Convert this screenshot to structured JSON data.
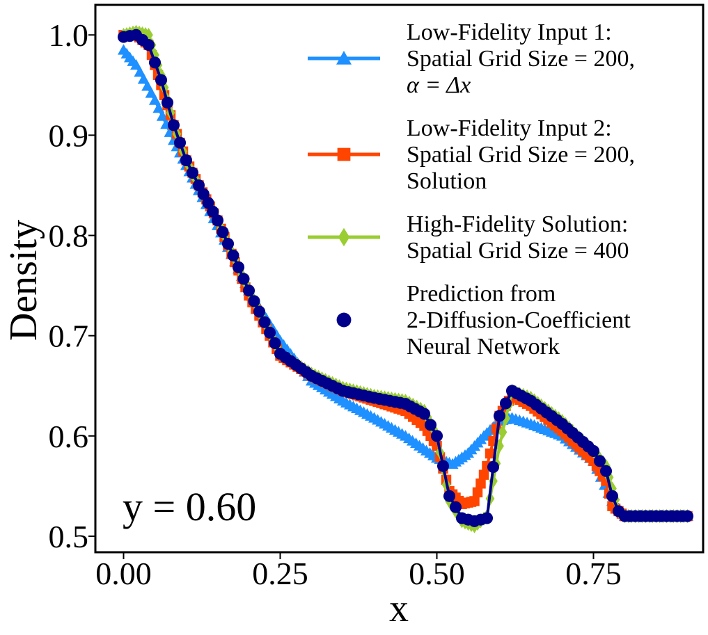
{
  "chart_data": {
    "type": "line",
    "xlabel": "x",
    "ylabel": "Density",
    "xlim": [
      -0.045,
      0.925
    ],
    "ylim": [
      0.484,
      1.03
    ],
    "xticks": [
      0.0,
      0.25,
      0.5,
      0.75
    ],
    "xtick_labels": [
      "0.00",
      "0.25",
      "0.50",
      "0.75"
    ],
    "yticks": [
      0.5,
      0.6,
      0.7,
      0.8,
      0.9,
      1.0
    ],
    "ytick_labels": [
      "0.5",
      "0.6",
      "0.7",
      "0.8",
      "0.9",
      "1.0"
    ],
    "annotation": "y = 0.60",
    "grid": false,
    "legend_position": "top-right",
    "series": [
      {
        "name_lines": [
          "Low-Fidelity Input 1:",
          "Spatial Grid Size = 200,",
          "α = Δx"
        ],
        "color": "#1E90FF",
        "marker": "triangle",
        "x": [
          0.0,
          0.02,
          0.05,
          0.08,
          0.1,
          0.12,
          0.15,
          0.2,
          0.25,
          0.3,
          0.35,
          0.4,
          0.45,
          0.5,
          0.525,
          0.55,
          0.575,
          0.6,
          0.62,
          0.65,
          0.7,
          0.75,
          0.78,
          0.8,
          0.85,
          0.9
        ],
        "y": [
          0.985,
          0.97,
          0.935,
          0.895,
          0.87,
          0.845,
          0.81,
          0.745,
          0.695,
          0.655,
          0.635,
          0.618,
          0.6,
          0.578,
          0.572,
          0.583,
          0.6,
          0.615,
          0.618,
          0.612,
          0.6,
          0.575,
          0.535,
          0.52,
          0.52,
          0.52
        ]
      },
      {
        "name_lines": [
          "Low-Fidelity Input 2:",
          "Spatial Grid Size = 200,",
          "Solution"
        ],
        "color": "#FF4500",
        "marker": "square",
        "x": [
          0.0,
          0.02,
          0.04,
          0.06,
          0.08,
          0.1,
          0.12,
          0.15,
          0.2,
          0.25,
          0.3,
          0.35,
          0.4,
          0.45,
          0.48,
          0.5,
          0.52,
          0.54,
          0.56,
          0.58,
          0.6,
          0.62,
          0.65,
          0.7,
          0.75,
          0.77,
          0.78,
          0.8,
          0.85,
          0.9
        ],
        "y": [
          1.0,
          1.0,
          0.99,
          0.95,
          0.91,
          0.875,
          0.85,
          0.815,
          0.74,
          0.68,
          0.66,
          0.645,
          0.635,
          0.625,
          0.61,
          0.59,
          0.545,
          0.532,
          0.535,
          0.57,
          0.62,
          0.64,
          0.63,
          0.605,
          0.575,
          0.555,
          0.53,
          0.52,
          0.52,
          0.52
        ]
      },
      {
        "name_lines": [
          "High-Fidelity Solution:",
          "Spatial Grid Size = 400"
        ],
        "color": "#9ACD32",
        "marker": "diamond",
        "x": [
          0.0,
          0.02,
          0.04,
          0.06,
          0.08,
          0.1,
          0.12,
          0.15,
          0.2,
          0.25,
          0.3,
          0.35,
          0.4,
          0.45,
          0.48,
          0.5,
          0.52,
          0.54,
          0.56,
          0.58,
          0.6,
          0.62,
          0.65,
          0.7,
          0.75,
          0.77,
          0.79,
          0.8,
          0.85,
          0.9
        ],
        "y": [
          1.0,
          1.003,
          1.0,
          0.96,
          0.91,
          0.875,
          0.85,
          0.815,
          0.745,
          0.682,
          0.662,
          0.648,
          0.64,
          0.635,
          0.625,
          0.6,
          0.535,
          0.515,
          0.51,
          0.52,
          0.59,
          0.645,
          0.638,
          0.615,
          0.585,
          0.57,
          0.525,
          0.52,
          0.52,
          0.52
        ]
      },
      {
        "name_lines": [
          "Prediction from",
          "2-Diffusion-Coefficient",
          "Neural Network"
        ],
        "color": "#00008B",
        "marker": "circle",
        "x": [
          0.0,
          0.02,
          0.04,
          0.06,
          0.08,
          0.1,
          0.12,
          0.15,
          0.2,
          0.25,
          0.3,
          0.35,
          0.4,
          0.45,
          0.48,
          0.5,
          0.52,
          0.54,
          0.56,
          0.58,
          0.6,
          0.62,
          0.65,
          0.7,
          0.75,
          0.77,
          0.78,
          0.79,
          0.8,
          0.85,
          0.9
        ],
        "y": [
          0.998,
          1.0,
          0.99,
          0.955,
          0.91,
          0.875,
          0.85,
          0.815,
          0.745,
          0.682,
          0.66,
          0.645,
          0.638,
          0.632,
          0.622,
          0.6,
          0.54,
          0.518,
          0.515,
          0.518,
          0.62,
          0.645,
          0.635,
          0.612,
          0.585,
          0.565,
          0.54,
          0.525,
          0.52,
          0.52,
          0.52
        ]
      }
    ]
  }
}
